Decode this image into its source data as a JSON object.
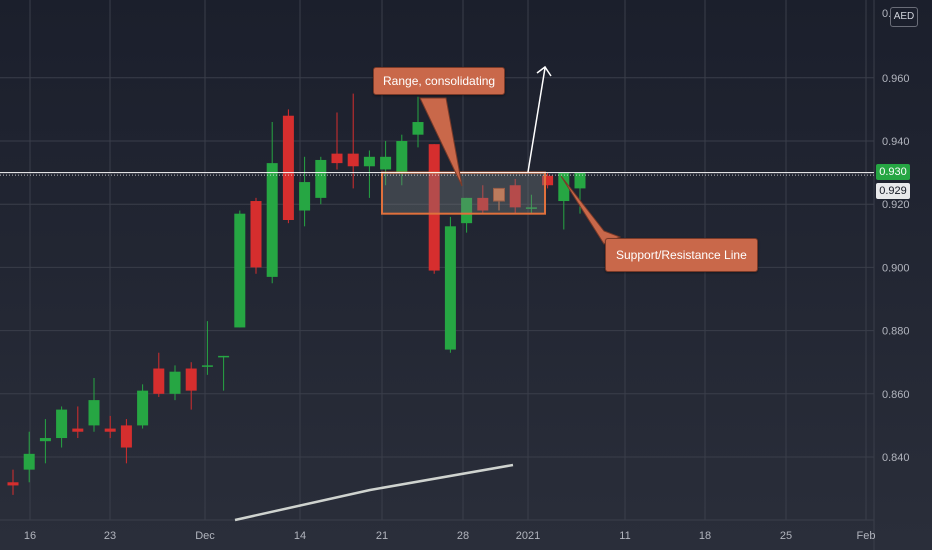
{
  "currency": "AED",
  "price_tags": {
    "current": "0.930",
    "last": "0.929"
  },
  "annotations": {
    "range": "Range, consolidating",
    "support": "Support/Resistance Line"
  },
  "colors": {
    "up": "#26a643",
    "down": "#d62e2e",
    "range_up": "#e07a4a",
    "line": "#ffffff",
    "grid": "#3a3e4a"
  },
  "chart_data": {
    "type": "candlestick",
    "y_ticks": [
      "0.840",
      "0.860",
      "0.880",
      "0.900",
      "0.920",
      "0.940",
      "0.960"
    ],
    "x_ticks": [
      "16",
      "23",
      "Dec",
      "14",
      "21",
      "28",
      "2021",
      "11",
      "18",
      "25",
      "Feb"
    ],
    "ylim": [
      0.818,
      0.972
    ],
    "support_resistance": 0.93,
    "range_box": {
      "low": 0.917,
      "high": 0.93
    },
    "candles": [
      {
        "o": 0.832,
        "h": 0.836,
        "l": 0.828,
        "c": 0.831
      },
      {
        "o": 0.836,
        "h": 0.848,
        "l": 0.832,
        "c": 0.841
      },
      {
        "o": 0.845,
        "h": 0.852,
        "l": 0.838,
        "c": 0.846
      },
      {
        "o": 0.846,
        "h": 0.856,
        "l": 0.843,
        "c": 0.855
      },
      {
        "o": 0.849,
        "h": 0.856,
        "l": 0.846,
        "c": 0.848
      },
      {
        "o": 0.85,
        "h": 0.865,
        "l": 0.848,
        "c": 0.858
      },
      {
        "o": 0.849,
        "h": 0.853,
        "l": 0.846,
        "c": 0.848
      },
      {
        "o": 0.85,
        "h": 0.852,
        "l": 0.838,
        "c": 0.843
      },
      {
        "o": 0.85,
        "h": 0.863,
        "l": 0.849,
        "c": 0.861
      },
      {
        "o": 0.868,
        "h": 0.873,
        "l": 0.859,
        "c": 0.86
      },
      {
        "o": 0.86,
        "h": 0.869,
        "l": 0.858,
        "c": 0.867
      },
      {
        "o": 0.868,
        "h": 0.87,
        "l": 0.855,
        "c": 0.861
      },
      {
        "o": 0.869,
        "h": 0.883,
        "l": 0.866,
        "c": 0.869
      },
      {
        "o": 0.872,
        "h": 0.872,
        "l": 0.861,
        "c": 0.872
      },
      {
        "o": 0.881,
        "h": 0.918,
        "l": 0.881,
        "c": 0.917
      },
      {
        "o": 0.921,
        "h": 0.922,
        "l": 0.898,
        "c": 0.9
      },
      {
        "o": 0.897,
        "h": 0.946,
        "l": 0.895,
        "c": 0.933
      },
      {
        "o": 0.948,
        "h": 0.95,
        "l": 0.914,
        "c": 0.915
      },
      {
        "o": 0.918,
        "h": 0.935,
        "l": 0.913,
        "c": 0.927
      },
      {
        "o": 0.922,
        "h": 0.935,
        "l": 0.92,
        "c": 0.934
      },
      {
        "o": 0.936,
        "h": 0.949,
        "l": 0.931,
        "c": 0.933
      },
      {
        "o": 0.936,
        "h": 0.955,
        "l": 0.925,
        "c": 0.932
      },
      {
        "o": 0.932,
        "h": 0.937,
        "l": 0.922,
        "c": 0.935
      },
      {
        "o": 0.931,
        "h": 0.94,
        "l": 0.926,
        "c": 0.935
      },
      {
        "o": 0.93,
        "h": 0.942,
        "l": 0.926,
        "c": 0.94
      },
      {
        "o": 0.942,
        "h": 0.954,
        "l": 0.938,
        "c": 0.946
      },
      {
        "o": 0.939,
        "h": 0.939,
        "l": 0.898,
        "c": 0.899
      },
      {
        "o": 0.874,
        "h": 0.916,
        "l": 0.873,
        "c": 0.913
      },
      {
        "o": 0.914,
        "h": 0.922,
        "l": 0.911,
        "c": 0.922
      },
      {
        "o": 0.922,
        "h": 0.926,
        "l": 0.917,
        "c": 0.918
      },
      {
        "o": 0.921,
        "h": 0.925,
        "l": 0.918,
        "c": 0.925
      },
      {
        "o": 0.926,
        "h": 0.928,
        "l": 0.917,
        "c": 0.919
      },
      {
        "o": 0.919,
        "h": 0.923,
        "l": 0.917,
        "c": 0.919
      },
      {
        "o": 0.929,
        "h": 0.93,
        "l": 0.925,
        "c": 0.926
      },
      {
        "o": 0.921,
        "h": 0.93,
        "l": 0.912,
        "c": 0.93
      },
      {
        "o": 0.925,
        "h": 0.93,
        "l": 0.917,
        "c": 0.93
      }
    ]
  }
}
